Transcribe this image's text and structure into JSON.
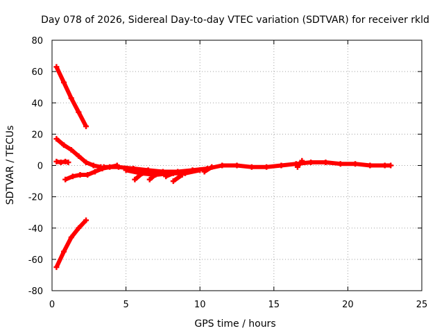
{
  "chart_data": {
    "type": "scatter",
    "title": "Day 078 of 2026, Sidereal Day-to-day VTEC variation (SDTVAR) for receiver rkld",
    "xlabel": "GPS time / hours",
    "ylabel": "SDTVAR / TECUs",
    "xlim": [
      0,
      25
    ],
    "ylim": [
      -80,
      80
    ],
    "xticks": [
      0,
      5,
      10,
      15,
      20,
      25
    ],
    "yticks": [
      -80,
      -60,
      -40,
      -20,
      0,
      20,
      40,
      60,
      80
    ],
    "xtick_labels": [
      "0",
      "5",
      "10",
      "15",
      "20",
      "25"
    ],
    "ytick_labels": [
      "-80",
      "-60",
      "-40",
      "-20",
      "0",
      "20",
      "40",
      "60",
      "80"
    ],
    "grid": true,
    "marker_color": "#ff0000",
    "series": [
      {
        "name": "upper-descending-track",
        "x": [
          0.3,
          0.8,
          1.3,
          1.8,
          2.3
        ],
        "y": [
          63,
          53,
          43,
          34,
          25
        ]
      },
      {
        "name": "lower-ascending-track",
        "x": [
          0.3,
          0.8,
          1.3,
          1.8,
          2.3
        ],
        "y": [
          -65,
          -55,
          -46,
          -40,
          -35
        ]
      },
      {
        "name": "decaying-track",
        "x": [
          0.3,
          0.8,
          1.3,
          1.8,
          2.3,
          2.8,
          3.3
        ],
        "y": [
          17,
          13,
          10,
          6,
          2,
          0,
          -1
        ]
      },
      {
        "name": "short-segment",
        "x": [
          0.3,
          0.6,
          0.9,
          1.1
        ],
        "y": [
          2.5,
          2,
          2.5,
          2
        ]
      },
      {
        "name": "rising-track",
        "x": [
          0.9,
          1.4,
          1.9,
          2.4,
          2.9,
          3.4,
          3.9,
          4.4
        ],
        "y": [
          -9,
          -7,
          -6,
          -6,
          -4,
          -2,
          -1,
          0
        ]
      },
      {
        "name": "main-trace-a",
        "x": [
          3.5,
          4.5,
          5.5,
          6.5,
          7.5,
          8.5,
          9.5,
          10.5,
          11.5,
          12.5,
          13.5,
          14.5,
          15.5,
          16.5,
          17.5,
          18.5,
          19.5,
          20.5,
          21.5,
          22.5,
          22.9
        ],
        "y": [
          -1,
          -1,
          -2,
          -3,
          -4,
          -4,
          -3,
          -2,
          0,
          0,
          -1,
          -1,
          0,
          1,
          2,
          2,
          1,
          1,
          0,
          0,
          0
        ]
      },
      {
        "name": "main-trace-b",
        "x": [
          5.0,
          6.0,
          7.0,
          8.0,
          9.0,
          10.0
        ],
        "y": [
          -3,
          -5,
          -6,
          -5,
          -5,
          -3
        ]
      },
      {
        "name": "dip-segment-1",
        "x": [
          5.6,
          6.1
        ],
        "y": [
          -9,
          -5
        ]
      },
      {
        "name": "dip-segment-2",
        "x": [
          6.6,
          7.1
        ],
        "y": [
          -9,
          -5
        ]
      },
      {
        "name": "dip-segment-3",
        "x": [
          7.7,
          8.2
        ],
        "y": [
          -7,
          -5
        ]
      },
      {
        "name": "dip-segment-4",
        "x": [
          8.2,
          8.8
        ],
        "y": [
          -10,
          -6
        ]
      },
      {
        "name": "dip-segment-5",
        "x": [
          10.3,
          10.8
        ],
        "y": [
          -4,
          -1
        ]
      },
      {
        "name": "spike-segment",
        "x": [
          16.6,
          16.9
        ],
        "y": [
          -1,
          3
        ]
      }
    ]
  }
}
